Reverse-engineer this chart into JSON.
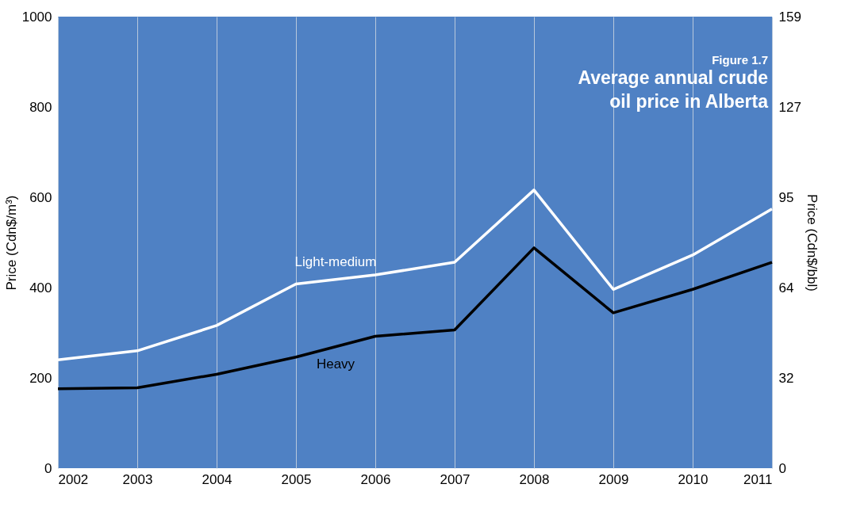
{
  "chart_data": {
    "type": "line",
    "title": "Average annual crude\noil price in Alberta",
    "subtitle": "Figure 1.7",
    "ylabel": "Price (Cdn$/m³)",
    "y2label": "Price (Cdn$/bbl)",
    "x": [
      2002,
      2003,
      2004,
      2005,
      2006,
      2007,
      2008,
      2009,
      2010,
      2011
    ],
    "xlim": [
      2002,
      2011
    ],
    "xticks": [
      2002,
      2003,
      2004,
      2005,
      2006,
      2007,
      2008,
      2009,
      2010,
      2011
    ],
    "ylim": [
      0,
      1000
    ],
    "yticks": [
      0,
      200,
      400,
      600,
      800,
      1000
    ],
    "y2lim": [
      0,
      159
    ],
    "y2ticks": [
      0,
      {
        "value": 31.8,
        "label": "32"
      },
      {
        "value": 63.6,
        "label": "64"
      },
      {
        "value": 95.4,
        "label": "95"
      },
      {
        "value": 127.2,
        "label": "127"
      },
      159
    ],
    "series": [
      {
        "name": "Light-medium",
        "color": "#ffffff",
        "values": [
          240,
          260,
          316,
          408,
          428,
          456,
          616,
          396,
          472,
          574
        ]
      },
      {
        "name": "Heavy",
        "color": "#000000",
        "values": [
          176,
          178,
          208,
          246,
          292,
          306,
          488,
          344,
          396,
          456
        ]
      }
    ],
    "grid": "x",
    "legend": false,
    "marker": "none",
    "line_style": "solid"
  }
}
